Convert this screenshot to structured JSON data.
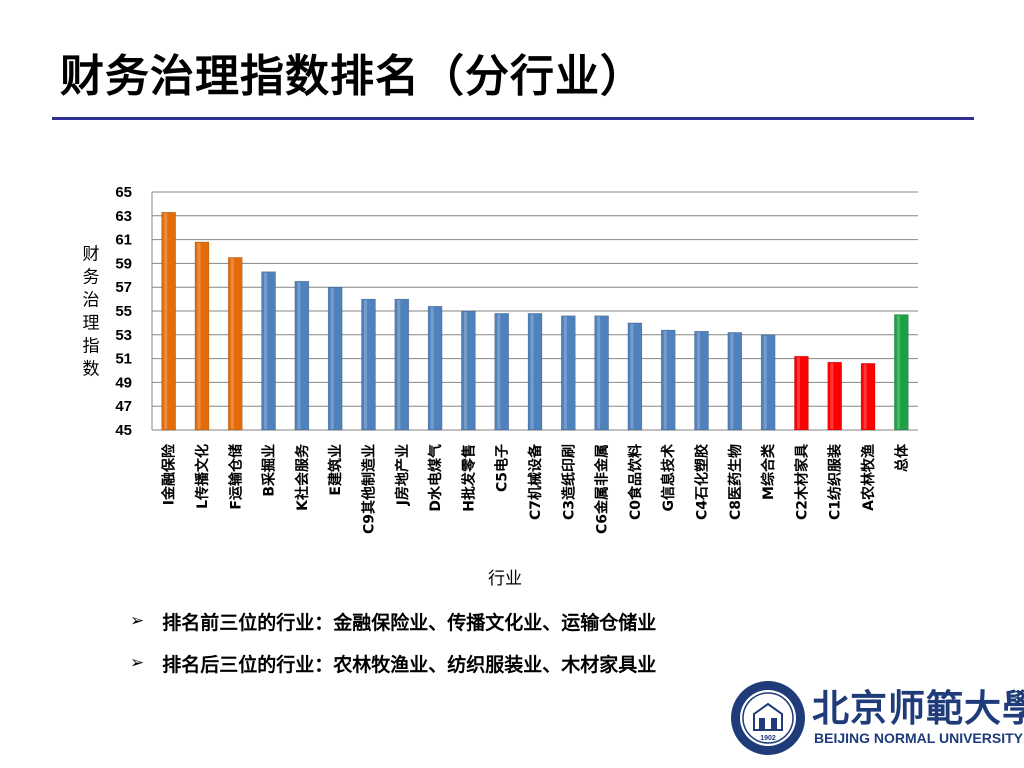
{
  "slide": {
    "title": "财务治理指数排名（分行业）"
  },
  "chart_data": {
    "type": "bar",
    "ylabel": "财务治理指数",
    "xlabel": "行业",
    "ylim": [
      45,
      65
    ],
    "yticks": [
      45,
      47,
      49,
      51,
      53,
      55,
      57,
      59,
      61,
      63,
      65
    ],
    "grid": true,
    "categories": [
      "I金融保险",
      "L传播文化",
      "F运输仓储",
      "B采掘业",
      "K社会服务",
      "E建筑业",
      "C9其他制造业",
      "J房地产业",
      "D水电煤气",
      "H批发零售",
      "C5电子",
      "C7机械设备",
      "C3造纸印刷",
      "C6金属非金属",
      "C0食品饮料",
      "G信息技术",
      "C4石化塑胶",
      "C8医药生物",
      "M综合类",
      "C2木材家具",
      "C1纺织服装",
      "A农林牧渔",
      "总体"
    ],
    "values": [
      63.3,
      60.8,
      59.5,
      58.3,
      57.5,
      57.0,
      56.0,
      56.0,
      55.4,
      55.0,
      54.8,
      54.8,
      54.6,
      54.6,
      54.0,
      53.4,
      53.3,
      53.2,
      53.0,
      51.2,
      50.7,
      50.6,
      54.7
    ],
    "bar_colors": [
      "#e36c09",
      "#e36c09",
      "#e36c09",
      "#4f81bd",
      "#4f81bd",
      "#4f81bd",
      "#4f81bd",
      "#4f81bd",
      "#4f81bd",
      "#4f81bd",
      "#4f81bd",
      "#4f81bd",
      "#4f81bd",
      "#4f81bd",
      "#4f81bd",
      "#4f81bd",
      "#4f81bd",
      "#4f81bd",
      "#4f81bd",
      "#ff0000",
      "#ff0000",
      "#ff0000",
      "#1ea045"
    ]
  },
  "notes": [
    "排名前三位的行业：金融保险业、传播文化业、运输仓储业",
    "排名后三位的行业：农林牧渔业、纺织服装业、木材家具业"
  ],
  "logo": {
    "name_cn": "北京师範大學",
    "name_en": "BEIJING NORMAL UNIVERSITY",
    "seal_year": "1902"
  },
  "colors": {
    "title_rule": "#2e3192",
    "grid": "#868686",
    "brand": "#1f3b7a"
  }
}
